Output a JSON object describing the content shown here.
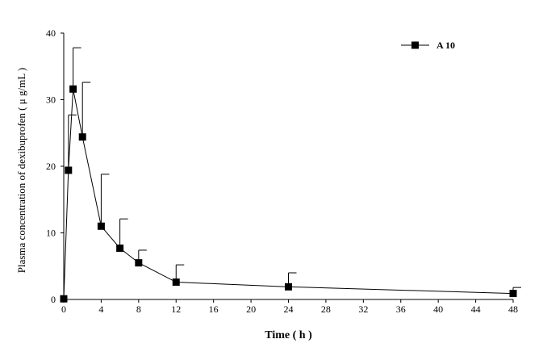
{
  "chart_data": {
    "type": "line",
    "title": "",
    "xlabel": "Time ( h )",
    "ylabel": "Plasma concentration of dexibuprofen ( μ g/mL )",
    "xlim": [
      0,
      48
    ],
    "ylim": [
      0,
      40
    ],
    "x_ticks": [
      0,
      4,
      8,
      12,
      16,
      20,
      24,
      28,
      32,
      36,
      40,
      44,
      48
    ],
    "y_ticks": [
      0,
      10,
      20,
      30,
      40
    ],
    "grid": false,
    "legend_position": "top-right",
    "series": [
      {
        "name": "A 10",
        "marker": "square",
        "color": "#000000",
        "x": [
          0,
          0.5,
          1,
          2,
          4,
          6,
          8,
          12,
          24,
          48
        ],
        "y": [
          0.1,
          19.4,
          31.6,
          24.4,
          11.0,
          7.7,
          5.5,
          2.6,
          1.9,
          0.9
        ],
        "error": [
          0,
          8.3,
          6.2,
          8.2,
          7.8,
          4.4,
          1.9,
          2.6,
          2.1,
          0.9
        ]
      }
    ]
  }
}
